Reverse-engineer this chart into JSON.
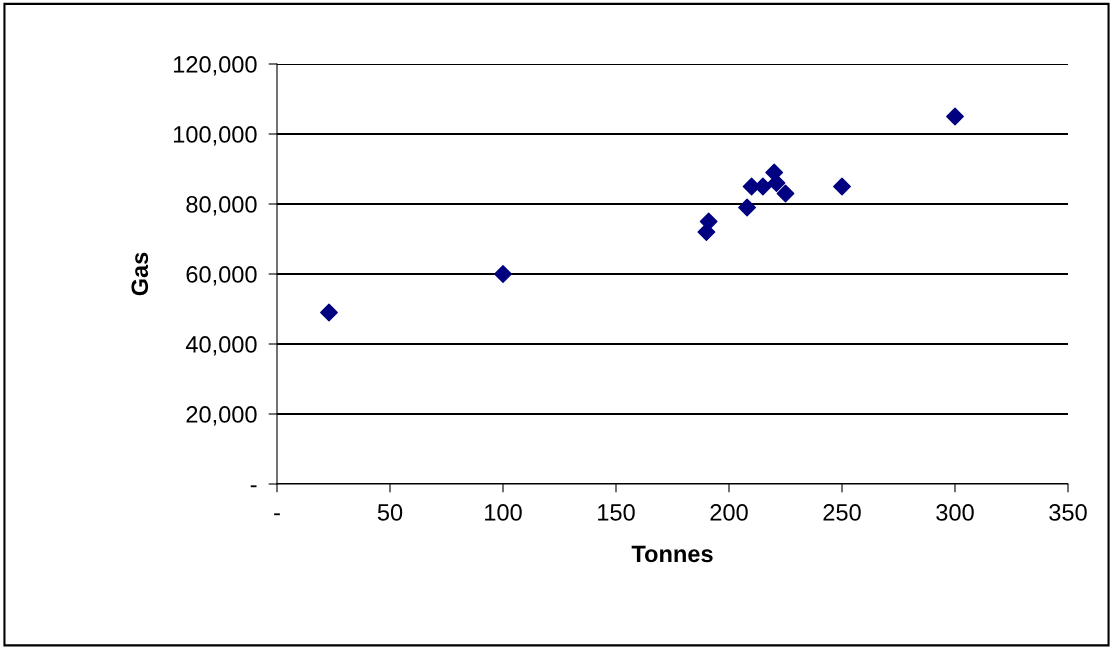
{
  "chart_data": {
    "type": "scatter",
    "xlabel": "Tonnes",
    "ylabel": "Gas",
    "x": [
      23,
      100,
      190,
      191,
      208,
      210,
      215,
      220,
      221,
      225,
      250,
      300
    ],
    "series": [
      {
        "color": "#000080",
        "values": [
          49000,
          60000,
          72000,
          75000,
          79000,
          85000,
          85000,
          89000,
          86000,
          83000,
          85000,
          105000
        ]
      }
    ],
    "marker": "diamond",
    "xlim": [
      0,
      350
    ],
    "xticks": [
      {
        "value": 0,
        "label": "-"
      },
      50,
      100,
      150,
      200,
      250,
      300,
      350
    ],
    "ylim": [
      0,
      120000
    ],
    "yticks": [
      {
        "value": 0,
        "label": "-"
      },
      {
        "value": 20000,
        "label": "20,000"
      },
      {
        "value": 40000,
        "label": "40,000"
      },
      {
        "value": 60000,
        "label": "60,000"
      },
      {
        "value": 80000,
        "label": "80,000"
      },
      {
        "value": 100000,
        "label": "100,000"
      },
      {
        "value": 120000,
        "label": "120,000"
      }
    ],
    "grid": "y",
    "legend": false
  }
}
